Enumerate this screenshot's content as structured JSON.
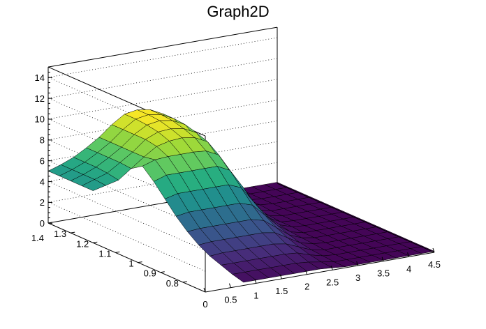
{
  "chart_data": {
    "type": "surface",
    "title": "Graph2D",
    "xlabel": "",
    "ylabel": "",
    "zlabel": "",
    "xlim": [
      0,
      4.5
    ],
    "ylim": [
      0.7,
      1.4
    ],
    "zlim": [
      0,
      15
    ],
    "x_ticks": [
      "0",
      "0.5",
      "1",
      "1.5",
      "2",
      "2.5",
      "3",
      "3.5",
      "4",
      "4.5"
    ],
    "y_ticks": [
      "0.8",
      "0.9",
      "1",
      "1.1",
      "1.2",
      "1.3",
      "1.4"
    ],
    "z_ticks": [
      "0",
      "2",
      "4",
      "6",
      "8",
      "10",
      "12",
      "14"
    ],
    "grid": true,
    "colormap": "viridis",
    "x_grid": [
      0,
      0.25,
      0.5,
      0.75,
      1.0,
      1.25,
      1.5,
      1.75,
      2.0,
      2.25,
      2.5,
      2.75,
      3.0,
      3.25,
      3.5,
      3.75,
      4.0,
      4.25,
      4.5
    ],
    "y_grid": [
      0.7,
      0.75,
      0.8,
      0.85,
      0.9,
      0.95,
      1.0,
      1.05,
      1.1,
      1.15,
      1.2,
      1.25,
      1.3,
      1.35,
      1.4
    ],
    "z_values": [
      [
        null,
        null,
        null,
        0.3,
        0.3,
        0.3,
        0.3,
        0.3,
        0.3,
        0.3,
        0.2,
        0.1,
        0.1,
        0.1,
        0.1,
        0.1,
        0.1,
        0.1,
        0.1
      ],
      [
        null,
        null,
        null,
        0.6,
        0.6,
        0.6,
        0.6,
        0.6,
        0.6,
        0.5,
        0.3,
        0.1,
        0.1,
        0.1,
        0.1,
        0.1,
        0.1,
        0.1,
        0.1
      ],
      [
        null,
        null,
        null,
        1.0,
        1.0,
        1.0,
        1.0,
        1.0,
        1.0,
        0.9,
        0.5,
        0.2,
        0.1,
        0.1,
        0.1,
        0.1,
        0.1,
        0.1,
        0.1
      ],
      [
        null,
        null,
        null,
        1.4,
        1.5,
        1.5,
        1.5,
        1.5,
        1.5,
        1.3,
        0.8,
        0.3,
        0.1,
        0.1,
        0.1,
        0.1,
        0.1,
        0.1,
        0.1
      ],
      [
        null,
        null,
        null,
        2.0,
        2.1,
        2.1,
        2.1,
        2.1,
        2.1,
        1.9,
        1.2,
        0.5,
        0.2,
        0.1,
        0.1,
        0.1,
        0.1,
        0.1,
        0.1
      ],
      [
        null,
        null,
        null,
        2.8,
        2.9,
        2.9,
        2.9,
        2.9,
        2.9,
        2.6,
        1.7,
        0.8,
        0.3,
        0.1,
        0.1,
        0.1,
        0.1,
        0.1,
        0.1
      ],
      [
        null,
        null,
        null,
        3.8,
        4.0,
        4.0,
        4.0,
        4.0,
        4.0,
        3.6,
        2.4,
        1.2,
        0.4,
        0.1,
        0.1,
        0.1,
        0.1,
        0.1,
        0.1
      ],
      [
        null,
        null,
        null,
        5.0,
        5.3,
        5.3,
        5.3,
        5.3,
        5.3,
        4.8,
        3.2,
        1.7,
        0.6,
        0.2,
        0.1,
        0.1,
        0.1,
        0.1,
        0.1
      ],
      [
        null,
        null,
        null,
        6.2,
        6.6,
        6.6,
        6.6,
        6.6,
        6.6,
        6.0,
        4.2,
        2.2,
        0.8,
        0.2,
        0.1,
        0.1,
        0.1,
        0.1,
        0.1
      ],
      [
        null,
        null,
        null,
        7.2,
        7.6,
        7.7,
        7.7,
        7.7,
        7.6,
        7.0,
        5.0,
        2.7,
        1.0,
        0.3,
        0.1,
        0.1,
        0.1,
        0.1,
        0.1
      ],
      [
        5.0,
        5.3,
        5.6,
        6.5,
        7.4,
        8.2,
        8.5,
        8.6,
        8.4,
        7.8,
        5.8,
        3.2,
        1.2,
        0.4,
        0.1,
        0.1,
        0.1,
        0.1,
        0.1
      ],
      [
        5.0,
        5.4,
        5.8,
        6.6,
        7.4,
        8.4,
        8.9,
        9.0,
        8.8,
        8.2,
        6.4,
        3.6,
        1.4,
        0.5,
        0.2,
        0.1,
        0.1,
        0.1,
        0.1
      ],
      [
        5.0,
        5.4,
        5.9,
        6.6,
        7.4,
        8.4,
        9.1,
        9.3,
        9.1,
        8.5,
        6.8,
        4.0,
        1.6,
        0.6,
        0.2,
        0.1,
        0.1,
        0.1,
        0.1
      ],
      [
        5.0,
        5.4,
        5.9,
        6.6,
        7.4,
        8.4,
        9.2,
        9.4,
        9.2,
        8.6,
        7.0,
        4.2,
        1.7,
        0.6,
        0.2,
        0.1,
        0.1,
        0.1,
        0.1
      ],
      [
        5.0,
        5.4,
        5.9,
        6.6,
        7.4,
        8.4,
        9.2,
        9.4,
        9.2,
        8.6,
        7.0,
        4.2,
        1.7,
        0.6,
        0.2,
        0.1,
        0.1,
        0.1,
        0.1
      ]
    ]
  }
}
